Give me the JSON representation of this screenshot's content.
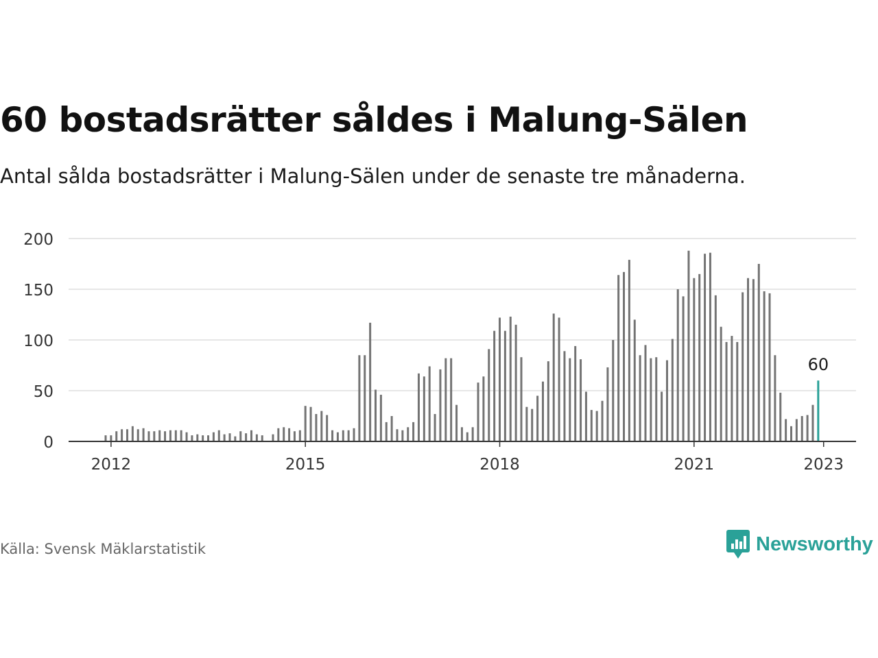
{
  "title": "60 bostadsrätter såldes i Malung-Sälen",
  "subtitle": "Antal sålda bostadsrätter i Malung-Sälen under de senaste tre månaderna.",
  "source": "Källa: Svensk Mäklarstatistik",
  "brand": {
    "name": "Newsworthy",
    "icon": "newsworthy-logo-icon",
    "color": "#2aa198"
  },
  "chart_data": {
    "type": "bar",
    "title": "60 bostadsrätter såldes i Malung-Sälen",
    "xlabel": "",
    "ylabel": "",
    "ylim": [
      0,
      200
    ],
    "yticks": [
      0,
      50,
      100,
      150,
      200
    ],
    "xtick_labels": [
      "2012",
      "2015",
      "2018",
      "2021",
      "2023"
    ],
    "grid": true,
    "legend": "none",
    "bar_color": "#737373",
    "highlight_color": "#2aa198",
    "highlight_label": "60",
    "period": {
      "start": "2011-12",
      "end": "2023-01",
      "step": "month"
    },
    "values": [
      6,
      6,
      10,
      12,
      12,
      15,
      12,
      13,
      10,
      10,
      11,
      10,
      11,
      11,
      11,
      9,
      6,
      7,
      6,
      6,
      9,
      11,
      7,
      8,
      5,
      10,
      8,
      11,
      7,
      6,
      0,
      7,
      13,
      14,
      13,
      10,
      11,
      35,
      34,
      27,
      30,
      26,
      11,
      9,
      11,
      11,
      13,
      85,
      85,
      117,
      51,
      46,
      19,
      25,
      12,
      11,
      14,
      19,
      67,
      64,
      74,
      27,
      71,
      82,
      82,
      36,
      14,
      9,
      14,
      58,
      64,
      91,
      109,
      122,
      109,
      123,
      115,
      83,
      34,
      32,
      45,
      59,
      79,
      126,
      122,
      89,
      82,
      94,
      81,
      49,
      31,
      30,
      40,
      73,
      100,
      164,
      167,
      179,
      120,
      85,
      95,
      82,
      83,
      49,
      80,
      101,
      150,
      143,
      188,
      161,
      165,
      185,
      186,
      144,
      113,
      98,
      104,
      98,
      147,
      161,
      160,
      175,
      148,
      146,
      85,
      48,
      22,
      15,
      22,
      25,
      26,
      36,
      60
    ]
  }
}
